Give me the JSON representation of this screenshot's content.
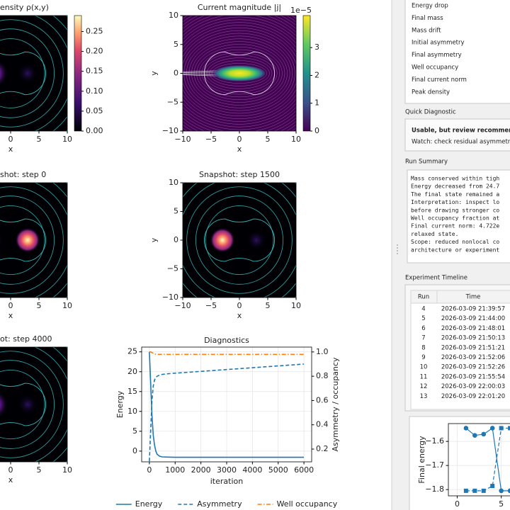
{
  "chart_data": [
    {
      "type": "heatmap",
      "title": "ensity ρ(x,y)",
      "xlabel": "x",
      "xlim": [
        -10,
        10
      ],
      "ylim": [
        -10,
        10
      ],
      "xticks": [
        0,
        5,
        10
      ],
      "colormap": "magma",
      "clim": [
        0,
        0.29
      ],
      "cticks": [
        {
          "value": 0,
          "label": "0.00"
        },
        {
          "value": 0.05,
          "label": "0.05"
        },
        {
          "value": 0.1,
          "label": "0.10"
        },
        {
          "value": 0.15,
          "label": "0.15"
        },
        {
          "value": 0.2,
          "label": "0.20"
        },
        {
          "value": 0.25,
          "label": "0.25"
        }
      ]
    },
    {
      "type": "heatmap",
      "title": "Current magnitude |j|",
      "xlabel": "x",
      "ylabel": "y",
      "xlim": [
        -10,
        10
      ],
      "ylim": [
        -10,
        10
      ],
      "xticks": [
        {
          "value": -10,
          "label": "−10"
        },
        {
          "value": -5,
          "label": "−5"
        },
        0,
        5,
        10
      ],
      "yticks": [
        {
          "value": -10,
          "label": "−10"
        },
        {
          "value": -5,
          "label": "−5"
        },
        0,
        5,
        10
      ],
      "colormap": "viridis",
      "clim": [
        0,
        4.15
      ],
      "cticks": [
        0,
        1,
        2,
        3
      ],
      "coffset": "1e−5"
    },
    {
      "type": "heatmap",
      "title": "shot: step 0",
      "xlabel": "x",
      "xlim": [
        -10,
        10
      ],
      "ylim": [
        -10,
        10
      ],
      "xticks": [
        0,
        5,
        10
      ],
      "colormap": "magma"
    },
    {
      "type": "heatmap",
      "title": "Snapshot: step 1500",
      "xlabel": "x",
      "ylabel": "y",
      "xlim": [
        -10,
        10
      ],
      "ylim": [
        -10,
        10
      ],
      "xticks": [
        {
          "value": -10,
          "label": "−10"
        },
        {
          "value": -5,
          "label": "−5"
        },
        0,
        5,
        10
      ],
      "yticks": [
        {
          "value": -10,
          "label": "−10"
        },
        {
          "value": -5,
          "label": "−5"
        },
        0,
        5,
        10
      ],
      "colormap": "magma"
    },
    {
      "type": "heatmap",
      "title": "ot: step 4000",
      "xlabel": "x",
      "xlim": [
        -10,
        10
      ],
      "ylim": [
        -10,
        10
      ],
      "xticks": [
        0,
        5,
        10
      ],
      "colormap": "magma"
    },
    {
      "type": "line",
      "title": "Diagnostics",
      "xlabel": "iteration",
      "ylabel": "Energy",
      "y2label": "Asymmetry / occupancy",
      "x": [
        0,
        50,
        100,
        150,
        200,
        250,
        300,
        400,
        500,
        700,
        1000,
        2000,
        3000,
        4000,
        5000,
        6000
      ],
      "series": [
        {
          "name": "Energy",
          "color": "#1f77b4",
          "linestyle": "solid",
          "values": [
            25,
            17,
            9,
            4,
            1.5,
            0,
            -0.8,
            -1.3,
            -1.45,
            -1.5,
            -1.55,
            -1.55,
            -1.55,
            -1.55,
            -1.55,
            -1.55
          ]
        },
        {
          "name": "Asymmetry",
          "color": "#1f77b4",
          "linestyle": "dashed",
          "axis": "y2",
          "values": [
            0.1,
            0.35,
            0.6,
            0.72,
            0.77,
            0.79,
            0.8,
            0.81,
            0.815,
            0.82,
            0.825,
            0.84,
            0.855,
            0.87,
            0.885,
            0.9
          ]
        },
        {
          "name": "Well occupancy",
          "color": "#ff7f0e",
          "linestyle": "dashdot",
          "axis": "y2",
          "values": [
            1.0,
            1.0,
            0.995,
            0.99,
            0.985,
            0.98,
            0.98,
            0.98,
            0.98,
            0.98,
            0.98,
            0.98,
            0.98,
            0.98,
            0.98,
            0.98
          ]
        }
      ],
      "xlim": [
        -300,
        6300
      ],
      "ylim": [
        -2.7,
        26.2
      ],
      "y2lim": [
        0.095,
        1.04
      ],
      "xticks": [
        0,
        1000,
        2000,
        3000,
        4000,
        5000,
        6000
      ],
      "yticks": [
        0,
        5,
        10,
        15,
        20,
        25
      ],
      "y2ticks": [
        0.2,
        0.4,
        0.6,
        0.8,
        {
          "value": 1,
          "label": "1.0"
        }
      ],
      "grid": true,
      "legend": "lower center"
    },
    {
      "type": "line",
      "ylabel": "Final energy",
      "x": [
        1,
        2,
        3,
        4,
        5,
        6,
        7
      ],
      "series": [
        {
          "color": "#1f77b4",
          "linestyle": "solid",
          "marker": "circle",
          "values": [
            -1.545,
            -1.575,
            -1.57,
            -1.545,
            -1.805,
            -1.805,
            -1.805
          ]
        },
        {
          "color": "#1f77b4",
          "linestyle": "dashed",
          "marker": "square",
          "values": [
            -1.805,
            -1.805,
            -1.805,
            -1.785,
            -1.545,
            -1.545,
            -1.545
          ]
        }
      ],
      "xlim": [
        -1,
        7.6
      ],
      "ylim": [
        -1.826,
        -1.526
      ],
      "xticks": [
        0,
        5
      ],
      "yticks": [
        {
          "value": -1.6,
          "label": "−1.6"
        },
        {
          "value": -1.7,
          "label": "−1.7"
        },
        {
          "value": -1.8,
          "label": "−1.8"
        }
      ],
      "grid": true
    }
  ],
  "sidebar": {
    "metrics": [
      "Energy drop",
      "Final mass",
      "Mass drift",
      "Initial asymmetry",
      "Final asymmetry",
      "Well occupancy",
      "Final current norm",
      "Peak density"
    ],
    "quick_diagnostic": {
      "label": "Quick Diagnostic",
      "verdict": "Usable, but review recommen",
      "note": "Watch: check residual asymmetry."
    },
    "run_summary": {
      "label": "Run Summary",
      "lines": [
        "Mass conserved within tigh",
        "Energy decreased from 24.7",
        "The final state remained a",
        "Interpretation: inspect lo",
        "before drawing stronger co",
        "Well occupancy fraction at",
        "Final current norm: 4.722e",
        "relaxed state.",
        "Scope: reduced nonlocal co",
        "architecture or experiment"
      ]
    },
    "timeline": {
      "label": "Experiment Timeline",
      "columns": [
        "Run",
        "Time"
      ],
      "rows": [
        [
          4,
          "2026-03-09 21:39:57"
        ],
        [
          5,
          "2026-03-09 21:44:00"
        ],
        [
          6,
          "2026-03-09 21:48:01"
        ],
        [
          7,
          "2026-03-09 21:50:13"
        ],
        [
          8,
          "2026-03-09 21:51:21"
        ],
        [
          9,
          "2026-03-09 21:52:06"
        ],
        [
          10,
          "2026-03-09 21:52:26"
        ],
        [
          11,
          "2026-03-09 21:55:54"
        ],
        [
          12,
          "2026-03-09 22:00:03"
        ],
        [
          13,
          "2026-03-09 22:01:20"
        ]
      ]
    }
  }
}
